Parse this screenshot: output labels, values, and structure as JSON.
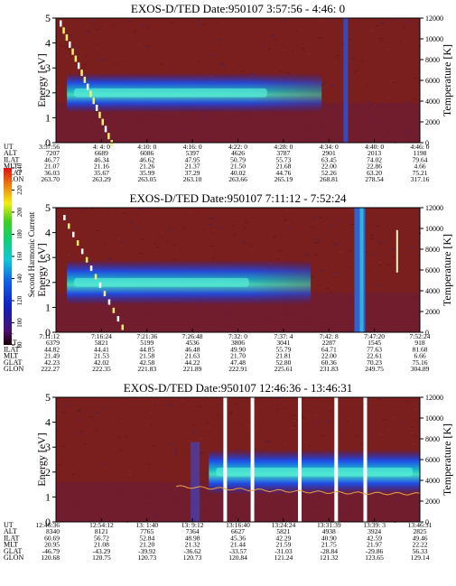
{
  "colorbar": {
    "label": "Second Harmonic Current",
    "ticks": [
      "80",
      "100",
      "120",
      "140",
      "160",
      "180",
      "200",
      "220",
      "240"
    ]
  },
  "chart_data": [
    {
      "type": "heatmap",
      "title": "EXOS-D/TED   Date:950107  3:57:56 - 4:46: 0",
      "ylabel": "Energy [eV]",
      "y2label": "Temperature [K]",
      "yticks": [
        "0",
        "1",
        "2",
        "3",
        "4",
        "5"
      ],
      "y2ticks": [
        "0",
        "2000",
        "4000",
        "6000",
        "8000",
        "10000",
        "12000"
      ],
      "ylim": [
        0,
        5
      ],
      "y2lim": [
        0,
        12000
      ],
      "ephemeris": {
        "labels": [
          "UT",
          "ALT",
          "ILAT",
          "MLT",
          "GLAT",
          "GLON"
        ],
        "columns": [
          [
            "3:57:56",
            "7207",
            "46.77",
            "21.07",
            "36.03",
            "263.70"
          ],
          [
            "4: 4: 0",
            "6689",
            "46.34",
            "21.16",
            "35.67",
            "263.29"
          ],
          [
            "4:10: 0",
            "6086",
            "46.62",
            "21.26",
            "35.99",
            "263.05"
          ],
          [
            "4:16: 0",
            "5397",
            "47.95",
            "21.37",
            "37.29",
            "263.10"
          ],
          [
            "4:22: 0",
            "4626",
            "50.79",
            "21.50",
            "40.02",
            "263.66"
          ],
          [
            "4:28: 0",
            "3787",
            "55.73",
            "21.68",
            "44.76",
            "265.19"
          ],
          [
            "4:34: 0",
            "2901",
            "63.45",
            "22.00",
            "52.26",
            "268.81"
          ],
          [
            "4:40: 0",
            "2013",
            "74.02",
            "22.86",
            "63.20",
            "278.54"
          ],
          [
            "4:46: 0",
            "1198",
            "79.64",
            "4.66",
            "75.21",
            "317.16"
          ]
        ]
      }
    },
    {
      "type": "heatmap",
      "title": "EXOS-D/TED   Date:950107  7:11:12 - 7:52:24",
      "ylabel": "Energy [eV]",
      "y2label": "Temperature [K]",
      "yticks": [
        "0",
        "1",
        "2",
        "3",
        "4",
        "5"
      ],
      "y2ticks": [
        "0",
        "2000",
        "4000",
        "6000",
        "8000",
        "10000",
        "12000"
      ],
      "ylim": [
        0,
        5
      ],
      "y2lim": [
        0,
        12000
      ],
      "ephemeris": {
        "labels": [
          "UT",
          "ALT",
          "ILAT",
          "MLT",
          "GLAT",
          "GLON"
        ],
        "columns": [
          [
            "7:11:12",
            "6379",
            "44.82",
            "21.49",
            "42.23",
            "222.27"
          ],
          [
            "7:16:24",
            "5821",
            "44.41",
            "21.53",
            "42.02",
            "222.35"
          ],
          [
            "7:21:36",
            "5199",
            "44.85",
            "21.58",
            "42.58",
            "221.83"
          ],
          [
            "7:26:48",
            "4536",
            "46.48",
            "21.63",
            "44.22",
            "221.89"
          ],
          [
            "7:32: 0",
            "3806",
            "49.90",
            "21.70",
            "47.48",
            "222.91"
          ],
          [
            "7:37: 4",
            "3041",
            "55.79",
            "21.81",
            "52.80",
            "225.61"
          ],
          [
            "7:42: 8",
            "2287",
            "64.71",
            "22.00",
            "60.36",
            "231.83"
          ],
          [
            "7:47:20",
            "1545",
            "77.63",
            "22.61",
            "70.23",
            "249.75"
          ],
          [
            "7:52:24",
            "918",
            "81.68",
            "6.66",
            "75.16",
            "304.89"
          ]
        ]
      }
    },
    {
      "type": "heatmap",
      "title": "EXOS-D/TED   Date:950107  12:46:36 - 13:46:31",
      "ylabel": "Energy [eV]",
      "y2label": "Temperature [K]",
      "yticks": [
        "0",
        "1",
        "2",
        "3",
        "4",
        "5"
      ],
      "y2ticks": [
        "0",
        "2000",
        "4000",
        "6000",
        "8000",
        "10000",
        "12000"
      ],
      "ylim": [
        0,
        5
      ],
      "y2lim": [
        0,
        12000
      ],
      "ephemeris": {
        "labels": [
          "UT",
          "ALT",
          "ILAT",
          "MLT",
          "GLAT",
          "GLON"
        ],
        "columns": [
          [
            "12:46:36",
            "8340",
            "60.69",
            "20.95",
            "-46.79",
            "120.68"
          ],
          [
            "12:54:12",
            "8121",
            "56.72",
            "21.08",
            "-43.29",
            "120.75"
          ],
          [
            "13: 1:40",
            "7765",
            "52.84",
            "21.20",
            "-39.92",
            "120.73"
          ],
          [
            "13: 9:12",
            "7364",
            "48.98",
            "21.32",
            "-36.62",
            "120.73"
          ],
          [
            "13:16:40",
            "6627",
            "45.36",
            "21.44",
            "-33.57",
            "120.84"
          ],
          [
            "13:24:24",
            "5821",
            "42.29",
            "21.59",
            "-31.03",
            "121.24"
          ],
          [
            "13:31:39",
            "4938",
            "40.90",
            "21.75",
            "-28.84",
            "121.32"
          ],
          [
            "13:39: 3",
            "3924",
            "42.59",
            "21.97",
            "-29.86",
            "123.65"
          ],
          [
            "13:46:31",
            "2825",
            "49.46",
            "22.22",
            "56.33",
            "129.14"
          ]
        ]
      }
    }
  ]
}
